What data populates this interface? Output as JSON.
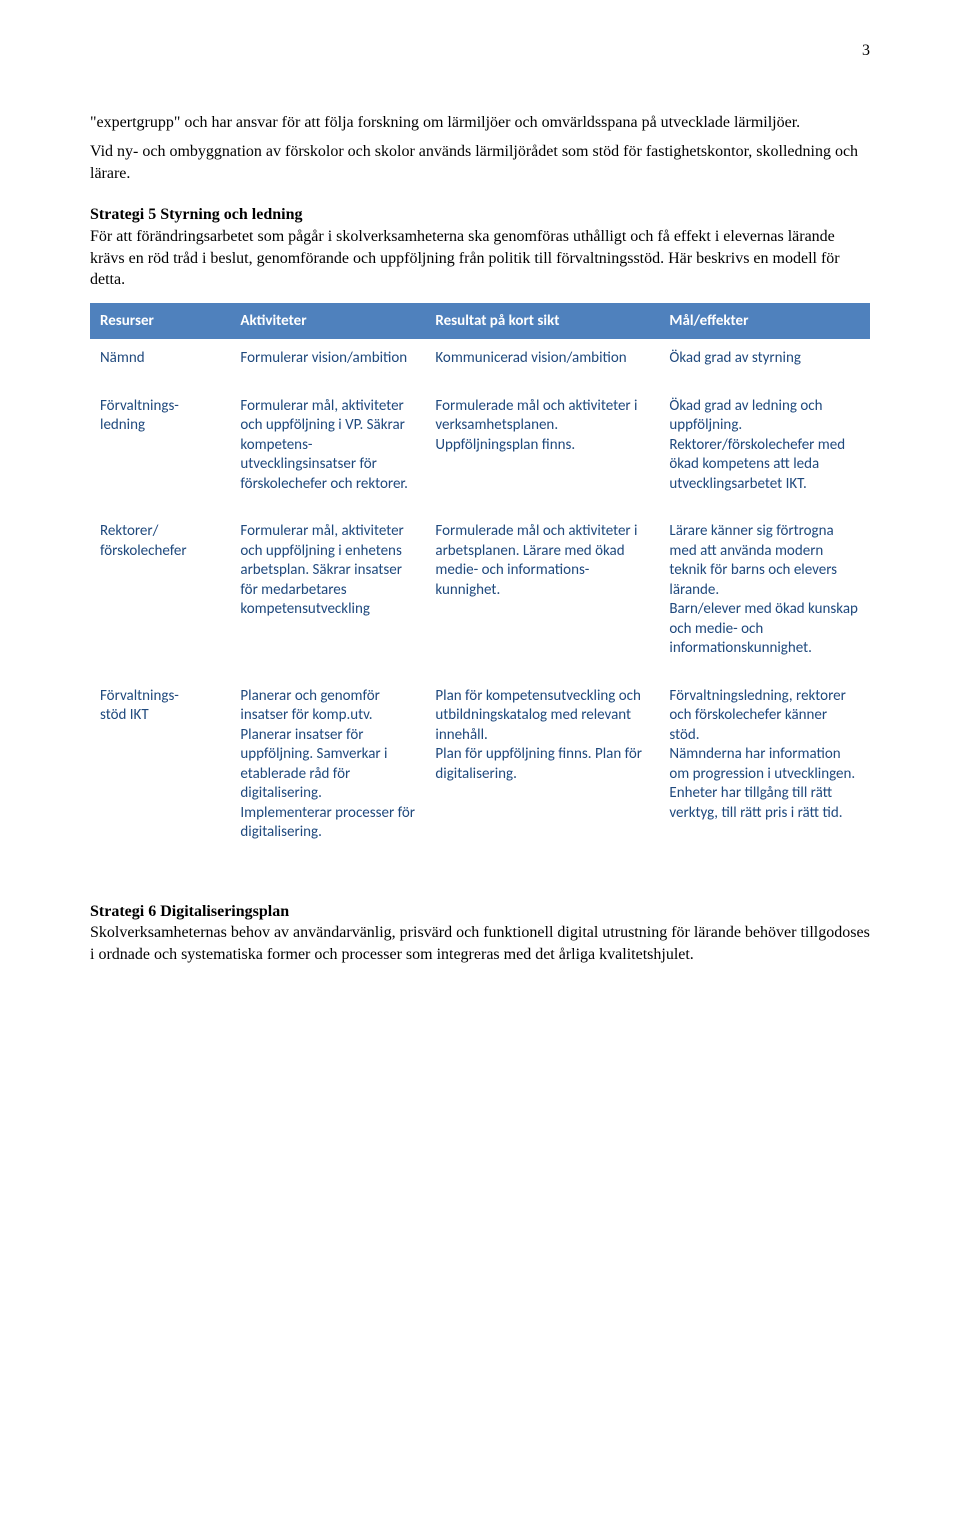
{
  "page_number": "3",
  "intro_paragraph": "\"expertgrupp\" och har ansvar för att följa forskning om lärmiljöer och omvärldsspana på utvecklade lärmiljöer.",
  "intro_paragraph2": "Vid ny- och ombyggnation av förskolor och skolor används lärmiljörådet som stöd för fastighetskontor, skolledning och lärare.",
  "strategy5": {
    "heading": "Strategi 5 Styrning och ledning",
    "body": "För att förändringsarbetet som pågår i skolverksamheterna ska genomföras uthålligt och få effekt i elevernas lärande krävs en röd tråd i beslut, genomförande och uppföljning från politik till förvaltningsstöd. Här beskrivs en modell för detta."
  },
  "table": {
    "header_background": "#4f81bd",
    "header_text_color": "#ffffff",
    "body_text_color": "#1f497d",
    "columns": [
      "Resurser",
      "Aktiviteter",
      "Resultat  på kort sikt",
      "Mål/effekter"
    ],
    "rows": [
      {
        "c1": "Nämnd",
        "c2": "Formulerar vision/ambition",
        "c3": "Kommunicerad vision/ambition",
        "c4": "Ökad grad av styrning"
      },
      {
        "c1": "Förvaltnings-\nledning",
        "c2": "Formulerar mål, aktiviteter och uppföljning i VP. Säkrar kompetens-\nutvecklingsinsatser för förskolechefer och rektorer.",
        "c3": "Formulerade mål och aktiviteter i verksamhetsplanen. Uppföljningsplan finns.",
        "c4": "Ökad grad av ledning och uppföljning. Rektorer/förskolechefer med ökad kompetens att leda utvecklingsarbetet IKT."
      },
      {
        "c1": "Rektorer/\nförskolechefer",
        "c2": "Formulerar mål, aktiviteter och uppföljning i enhetens arbetsplan. Säkrar insatser för medarbetares kompetensutveckling",
        "c3": "Formulerade mål och aktiviteter i arbetsplanen. Lärare med ökad medie- och informations-\nkunnighet.",
        "c4": "Lärare känner sig förtrogna med att använda modern teknik för barns och elevers lärande.\nBarn/elever med ökad kunskap och medie- och informationskunnighet."
      },
      {
        "c1": "Förvaltnings-\nstöd IKT",
        "c2": "Planerar och genomför insatser för komp.utv. Planerar insatser för uppföljning. Samverkar i etablerade råd för digitalisering. Implementerar processer för digitalisering.",
        "c3": "Plan för kompetensutveckling och utbildningskatalog med relevant innehåll.\nPlan för uppföljning finns. Plan för digitalisering.",
        "c4": "Förvaltningsledning, rektorer och förskolechefer känner stöd.\nNämnderna har information om progression i utvecklingen.\nEnheter har tillgång till rätt verktyg, till rätt pris i rätt tid."
      }
    ]
  },
  "strategy6": {
    "heading": "Strategi 6 Digitaliseringsplan",
    "body": "Skolverksamheternas behov av användarvänlig, prisvärd och funktionell digital utrustning för lärande behöver tillgodoses i ordnade och systematiska former och processer som integreras med det årliga kvalitetshjulet."
  }
}
